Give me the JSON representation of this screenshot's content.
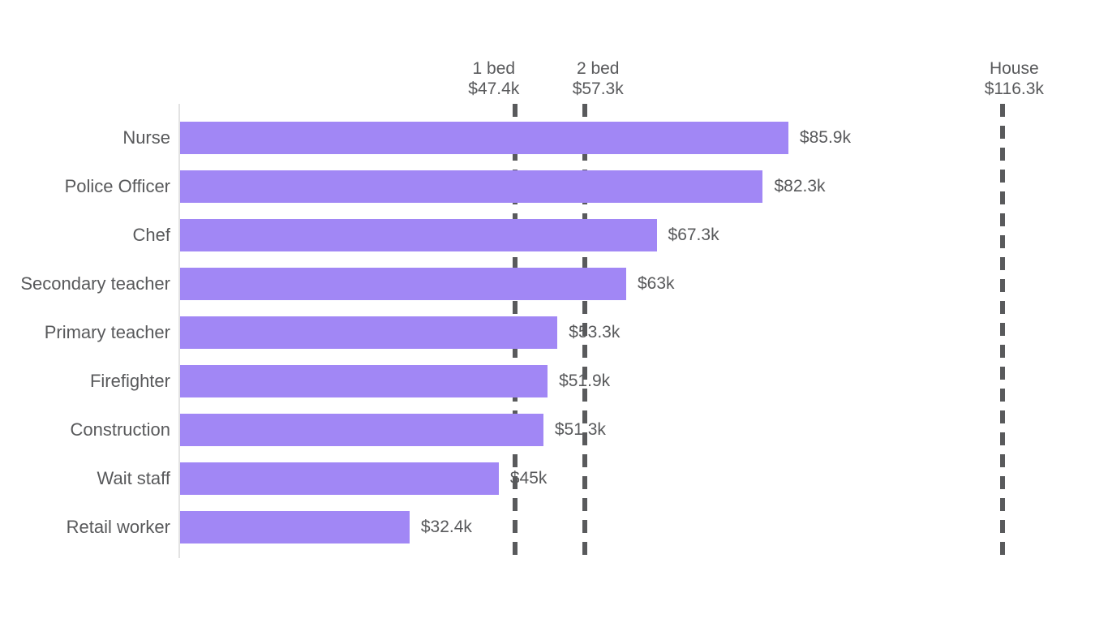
{
  "chart_data": {
    "type": "bar",
    "orientation": "horizontal",
    "title": "",
    "xlabel": "",
    "ylabel": "",
    "unit": "USD thousands",
    "xlim": [
      0,
      131
    ],
    "grid": false,
    "legend": false,
    "categories": [
      "Nurse",
      "Police Officer",
      "Chef",
      "Secondary teacher",
      "Primary teacher",
      "Firefighter",
      "Construction",
      "Wait staff",
      "Retail worker"
    ],
    "values": [
      85.9,
      82.3,
      67.3,
      63,
      53.3,
      51.9,
      51.3,
      45,
      32.4
    ],
    "value_labels": [
      "$85.9k",
      "$82.3k",
      "$67.3k",
      "$63k",
      "$53.3k",
      "$51.9k",
      "$51.3k",
      "$45k",
      "$32.4k"
    ],
    "reference_lines": [
      {
        "label": "1 bed",
        "value_label": "$47.4k",
        "value": 47.4
      },
      {
        "label": "2 bed",
        "value_label": "$57.3k",
        "value": 57.3
      },
      {
        "label": "House",
        "value_label": "$116.3k",
        "value": 116.3
      }
    ],
    "colors": {
      "bar": "#a187f5",
      "reference_line": "#595a5c",
      "text": "#58595b",
      "axis_line": "#e3e3e3"
    }
  }
}
